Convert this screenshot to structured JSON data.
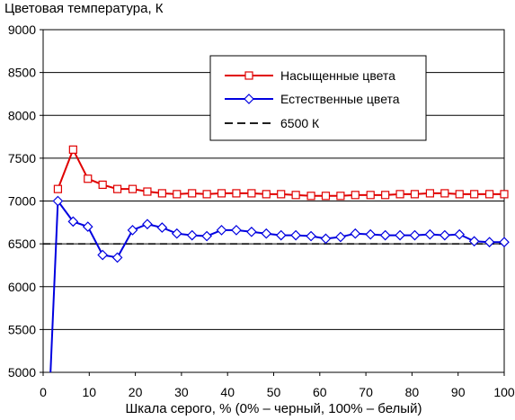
{
  "chart_data": {
    "type": "line",
    "title": "",
    "ylabel": "Цветовая температура, К",
    "xlabel": "Шкала серого, % (0% – черный, 100% – белый)",
    "xlim": [
      0,
      100
    ],
    "ylim": [
      5000,
      9000
    ],
    "x_ticks": [
      "0",
      "10",
      "20",
      "30",
      "40",
      "50",
      "60",
      "70",
      "80",
      "90",
      "100"
    ],
    "y_ticks": [
      "5000",
      "5500",
      "6000",
      "6500",
      "7000",
      "7500",
      "8000",
      "8500",
      "9000"
    ],
    "grid": true,
    "legend_position": "top-right",
    "series": [
      {
        "name": "Насыщенные цвета",
        "color": "#e00000",
        "marker": "square",
        "x": [
          3.2,
          6.5,
          9.7,
          12.9,
          16.1,
          19.4,
          22.6,
          25.8,
          29.0,
          32.3,
          35.5,
          38.7,
          41.9,
          45.2,
          48.4,
          51.6,
          54.8,
          58.1,
          61.3,
          64.5,
          67.7,
          71.0,
          74.2,
          77.4,
          80.6,
          83.9,
          87.1,
          90.3,
          93.5,
          96.8,
          100
        ],
        "y": [
          7140,
          7600,
          7260,
          7190,
          7140,
          7140,
          7110,
          7090,
          7080,
          7090,
          7080,
          7090,
          7090,
          7090,
          7080,
          7080,
          7070,
          7060,
          7060,
          7060,
          7070,
          7070,
          7070,
          7080,
          7080,
          7090,
          7090,
          7080,
          7080,
          7080,
          7080
        ]
      },
      {
        "name": "Естественные цвета",
        "color": "#0000e0",
        "marker": "diamond",
        "x": [
          1.6,
          3.2,
          6.5,
          9.7,
          12.9,
          16.1,
          19.4,
          22.6,
          25.8,
          29.0,
          32.3,
          35.5,
          38.7,
          41.9,
          45.2,
          48.4,
          51.6,
          54.8,
          58.1,
          61.3,
          64.5,
          67.7,
          71.0,
          74.2,
          77.4,
          80.6,
          83.9,
          87.1,
          90.3,
          93.5,
          96.8,
          100
        ],
        "y": [
          5000,
          7000,
          6760,
          6700,
          6370,
          6340,
          6660,
          6730,
          6690,
          6620,
          6600,
          6590,
          6660,
          6660,
          6640,
          6620,
          6600,
          6600,
          6590,
          6560,
          6580,
          6620,
          6610,
          6600,
          6600,
          6600,
          6610,
          6600,
          6610,
          6530,
          6520,
          6520
        ]
      },
      {
        "name": "6500 К",
        "color": "#000000",
        "style": "dashed",
        "x": [
          0,
          100
        ],
        "y": [
          6500,
          6500
        ]
      }
    ]
  }
}
